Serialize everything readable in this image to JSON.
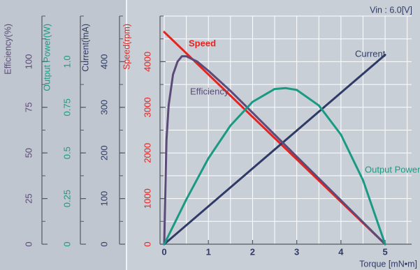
{
  "chart_data": {
    "type": "line",
    "annotation": "Vin : 6.0[V]",
    "xlabel": "Torque [mN•m]",
    "x_ticks": [
      0,
      1,
      2,
      3,
      4,
      5
    ],
    "xlim": [
      0,
      5.6
    ],
    "grid": true,
    "axes": [
      {
        "id": "efficiency",
        "label": "Efficiency(%)",
        "color": "#5c4a78",
        "range": [
          0,
          125
        ],
        "ticks": [
          0,
          25,
          50,
          75,
          100
        ],
        "tick_labels": [
          "0",
          "25",
          "50",
          "75",
          "100"
        ]
      },
      {
        "id": "power",
        "label": "Output Power(W)",
        "color": "#1a9a82",
        "range": [
          0,
          1.25
        ],
        "ticks": [
          0,
          0.25,
          0.5,
          0.75,
          1.0
        ],
        "tick_labels": [
          "0",
          "0.25",
          "0.5",
          "0.75",
          "1.0"
        ]
      },
      {
        "id": "current",
        "label": "Current(mA)",
        "color": "#2f3b66",
        "range": [
          0,
          500
        ],
        "ticks": [
          0,
          100,
          200,
          300,
          400
        ],
        "tick_labels": [
          "0",
          "100",
          "200",
          "300",
          "400"
        ]
      },
      {
        "id": "speed",
        "label": "Speed(rpm)",
        "color": "#e8231e",
        "range": [
          0,
          5000
        ],
        "ticks": [
          0,
          1000,
          2000,
          3000,
          4000
        ],
        "tick_labels": [
          "0",
          "1000",
          "2000",
          "3000",
          "4000"
        ]
      }
    ],
    "series": [
      {
        "name": "Speed",
        "axis": "speed",
        "color": "#e8231e",
        "x": [
          0,
          5
        ],
        "y": [
          4650,
          0
        ]
      },
      {
        "name": "Current",
        "axis": "current",
        "color": "#2f3b66",
        "x": [
          0,
          5
        ],
        "y": [
          0,
          415
        ]
      },
      {
        "name": "Efficiency",
        "axis": "efficiency",
        "color": "#5c4a78",
        "x": [
          0,
          0.05,
          0.1,
          0.2,
          0.3,
          0.4,
          0.5,
          0.75,
          1.0,
          1.5,
          2.0,
          2.5,
          3.0,
          3.5,
          4.0,
          4.5,
          5.0
        ],
        "y": [
          0,
          57,
          76,
          93,
          100,
          103,
          103,
          100,
          95,
          84,
          72,
          60,
          48,
          36,
          24,
          12,
          0
        ]
      },
      {
        "name": "Output Power",
        "axis": "power",
        "color": "#1a9a82",
        "x": [
          0,
          0.5,
          1.0,
          1.5,
          2.0,
          2.5,
          2.75,
          3.0,
          3.5,
          4.0,
          4.5,
          5.0
        ],
        "y": [
          0,
          0.245,
          0.47,
          0.65,
          0.78,
          0.85,
          0.855,
          0.845,
          0.76,
          0.6,
          0.35,
          0
        ]
      }
    ]
  }
}
